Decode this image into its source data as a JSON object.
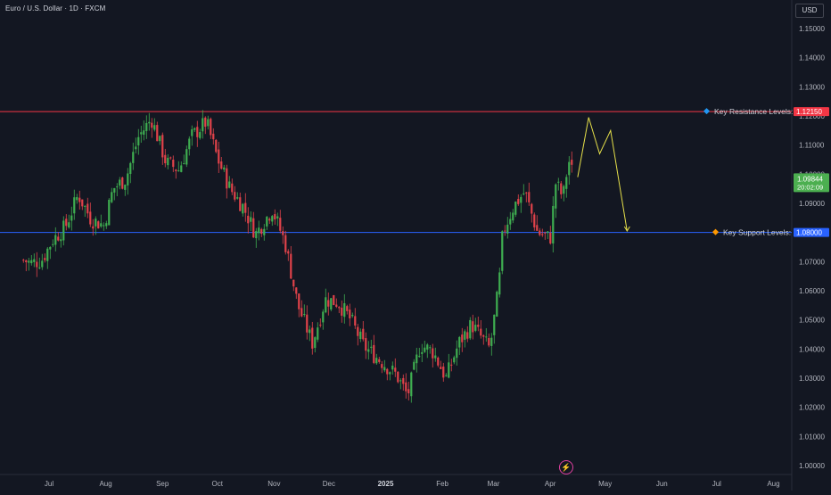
{
  "header": {
    "title": "Euro / U.S. Dollar · 1D · FXCM",
    "currency": "USD"
  },
  "colors": {
    "background": "#131722",
    "up": "#26a69a",
    "down": "#ef5350",
    "candle_up": "#3fae50",
    "candle_down": "#e0424a",
    "resistance": "#f23645",
    "support": "#2962ff",
    "projection": "#e6e04a",
    "current_price": "#4caf50"
  },
  "annotations": {
    "resistance_label": "Key Resistance Levels:",
    "support_label": "Key Support Levels:",
    "resistance_price": "1.12150",
    "support_price": "1.08000",
    "current_price": "1.09844",
    "countdown": "20:02:09"
  },
  "icons": {
    "resistance_marker": "blue-diamond-icon",
    "support_marker": "orange-diamond-icon",
    "bottom_marker": "lightning-icon"
  },
  "chart_data": {
    "type": "candlestick",
    "title": "Euro / U.S. Dollar · 1D · FXCM",
    "y_axis": {
      "ticks": [
        "1.15000",
        "1.14000",
        "1.13000",
        "1.12000",
        "1.11000",
        "1.10000",
        "1.09000",
        "1.08000",
        "1.07000",
        "1.06000",
        "1.05000",
        "1.04000",
        "1.03000",
        "1.02000",
        "1.01000",
        "1.00000"
      ],
      "range": [
        0.995,
        1.155
      ],
      "position": "right"
    },
    "x_axis": {
      "ticks": [
        "Jul",
        "Aug",
        "Sep",
        "Oct",
        "Nov",
        "Dec",
        "2025",
        "Feb",
        "Mar",
        "Apr",
        "May",
        "Jun",
        "Jul",
        "Aug"
      ],
      "bold_ticks": [
        "2025"
      ]
    },
    "key_levels": [
      {
        "name": "Key Resistance Levels:",
        "value": 1.1215
      },
      {
        "name": "Key Support Levels:",
        "value": 1.08
      }
    ],
    "last_price": 1.09844,
    "close_path": [
      [
        "2024-06-17",
        1.0705
      ],
      [
        "2024-06-21",
        1.0695
      ],
      [
        "2024-06-27",
        1.0705
      ],
      [
        "2024-07-03",
        1.0775
      ],
      [
        "2024-07-10",
        1.082
      ],
      [
        "2024-07-17",
        1.093
      ],
      [
        "2024-07-24",
        1.0845
      ],
      [
        "2024-07-31",
        1.0825
      ],
      [
        "2024-08-05",
        1.095
      ],
      [
        "2024-08-12",
        1.0985
      ],
      [
        "2024-08-19",
        1.113
      ],
      [
        "2024-08-26",
        1.119
      ],
      [
        "2024-09-03",
        1.104
      ],
      [
        "2024-09-10",
        1.1015
      ],
      [
        "2024-09-17",
        1.113
      ],
      [
        "2024-09-25",
        1.118
      ],
      [
        "2024-10-01",
        1.1055
      ],
      [
        "2024-10-08",
        1.095
      ],
      [
        "2024-10-15",
        1.089
      ],
      [
        "2024-10-22",
        1.0795
      ],
      [
        "2024-10-31",
        1.088
      ],
      [
        "2024-11-07",
        1.0765
      ],
      [
        "2024-11-14",
        1.055
      ],
      [
        "2024-11-22",
        1.042
      ],
      [
        "2024-11-29",
        1.057
      ],
      [
        "2024-12-06",
        1.056
      ],
      [
        "2024-12-13",
        1.05
      ],
      [
        "2024-12-20",
        1.041
      ],
      [
        "2024-12-31",
        1.035
      ],
      [
        "2025-01-07",
        1.031
      ],
      [
        "2025-01-13",
        1.024
      ],
      [
        "2025-01-20",
        1.0415
      ],
      [
        "2025-01-27",
        1.039
      ],
      [
        "2025-02-03",
        1.03
      ],
      [
        "2025-02-10",
        1.042
      ],
      [
        "2025-02-17",
        1.0485
      ],
      [
        "2025-02-27",
        1.04
      ],
      [
        "2025-03-04",
        1.062
      ],
      [
        "2025-03-06",
        1.08
      ],
      [
        "2025-03-12",
        1.089
      ],
      [
        "2025-03-18",
        1.094
      ],
      [
        "2025-03-25",
        1.08
      ],
      [
        "2025-04-01",
        1.078
      ],
      [
        "2025-04-04",
        1.097
      ],
      [
        "2025-04-08",
        1.092
      ],
      [
        "2025-04-11",
        1.105
      ],
      [
        "2025-04-14",
        1.0984
      ]
    ],
    "projection_path": [
      [
        "2025-04-16",
        1.099
      ],
      [
        "2025-04-22",
        1.1195
      ],
      [
        "2025-04-28",
        1.107
      ],
      [
        "2025-05-04",
        1.115
      ],
      [
        "2025-05-13",
        1.0805
      ]
    ]
  }
}
